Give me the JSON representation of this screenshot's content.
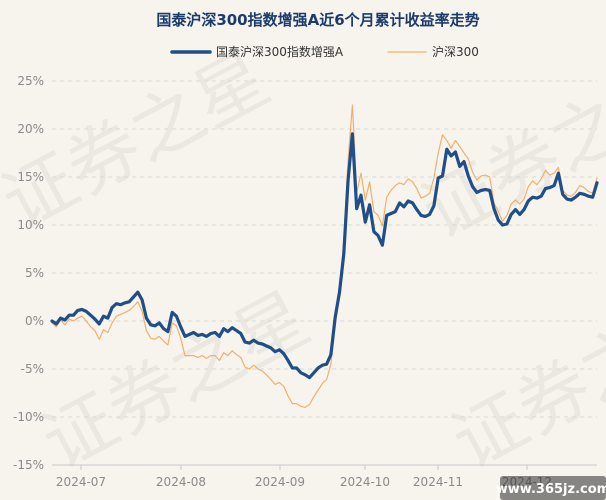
{
  "chart_data": {
    "type": "line",
    "title": "国泰沪深300指数增强A近6个月累计收益率走势",
    "xlabel": "",
    "ylabel": "",
    "ylim": [
      -15,
      25
    ],
    "yticks": [
      25,
      20,
      15,
      10,
      5,
      0,
      -5,
      -10,
      -15
    ],
    "ytick_labels": [
      "25%",
      "20%",
      "15%",
      "10%",
      "5%",
      "0%",
      "-5%",
      "-10%",
      "-15%"
    ],
    "xticks": [
      "2024-07",
      "2024-08",
      "2024-09",
      "2024-10",
      "2024-11",
      "2024-12"
    ],
    "grid": true,
    "legend_position": "top",
    "series": [
      {
        "name": "国泰沪深300指数增强A",
        "color": "#1f4e89",
        "values": [
          0.0,
          -0.3,
          0.3,
          0.1,
          0.6,
          0.6,
          1.1,
          1.2,
          1.0,
          0.6,
          0.2,
          -0.3,
          0.5,
          0.3,
          1.4,
          1.8,
          1.7,
          1.9,
          2.0,
          2.5,
          3.0,
          2.2,
          0.3,
          -0.4,
          -0.5,
          -0.2,
          -0.8,
          -1.1,
          0.9,
          0.5,
          -0.6,
          -1.6,
          -1.4,
          -1.2,
          -1.5,
          -1.4,
          -1.6,
          -1.3,
          -1.2,
          -1.6,
          -0.8,
          -1.1,
          -0.7,
          -1.0,
          -1.3,
          -2.2,
          -2.3,
          -2.0,
          -2.3,
          -2.4,
          -2.6,
          -2.8,
          -3.2,
          -3.0,
          -3.4,
          -4.1,
          -4.9,
          -4.9,
          -5.4,
          -5.6,
          -5.9,
          -5.4,
          -4.9,
          -4.6,
          -4.5,
          -3.5,
          0.4,
          3.0,
          7.0,
          14.7,
          19.5,
          11.7,
          13.1,
          10.3,
          12.1,
          9.3,
          8.9,
          7.9,
          11.0,
          11.2,
          11.4,
          12.3,
          11.9,
          12.5,
          12.3,
          11.6,
          11.0,
          10.9,
          11.1,
          12.0,
          14.9,
          15.1,
          17.9,
          17.2,
          17.6,
          16.1,
          16.6,
          15.1,
          14.0,
          13.4,
          13.6,
          13.7,
          13.6,
          11.7,
          10.5,
          10.0,
          10.1,
          11.1,
          11.6,
          11.1,
          11.6,
          12.5,
          12.9,
          12.8,
          13.0,
          13.8,
          13.9,
          14.1,
          15.4,
          13.2,
          12.7,
          12.6,
          12.9,
          13.3,
          13.2,
          13.0,
          12.9,
          14.4
        ]
      },
      {
        "name": "沪深300",
        "color": "#f2b06a",
        "values": [
          -0.2,
          -0.6,
          0.1,
          -0.4,
          0.2,
          0.0,
          0.3,
          0.5,
          0.0,
          -0.6,
          -1.0,
          -1.9,
          -0.9,
          -1.2,
          -0.2,
          0.5,
          0.7,
          0.9,
          1.1,
          1.5,
          2.0,
          1.0,
          -1.0,
          -1.8,
          -1.9,
          -1.6,
          -2.1,
          -2.5,
          -0.2,
          -0.5,
          -1.8,
          -3.6,
          -3.6,
          -3.6,
          -3.8,
          -3.6,
          -3.9,
          -3.6,
          -3.6,
          -4.1,
          -3.3,
          -3.6,
          -3.1,
          -3.5,
          -3.8,
          -4.8,
          -5.0,
          -4.6,
          -5.0,
          -5.2,
          -5.6,
          -6.1,
          -6.6,
          -6.4,
          -6.8,
          -7.8,
          -8.6,
          -8.6,
          -8.9,
          -9.0,
          -8.7,
          -7.9,
          -7.2,
          -6.5,
          -6.1,
          -4.5,
          -0.4,
          2.6,
          8.5,
          16.7,
          22.5,
          13.4,
          15.4,
          12.6,
          14.5,
          11.4,
          11.0,
          9.9,
          12.9,
          13.6,
          14.1,
          14.4,
          14.2,
          14.8,
          14.5,
          13.8,
          12.8,
          13.0,
          13.3,
          14.9,
          17.5,
          19.4,
          18.8,
          18.0,
          18.8,
          18.2,
          17.5,
          16.9,
          15.5,
          14.7,
          15.1,
          15.2,
          15.0,
          12.3,
          11.4,
          10.4,
          11.0,
          12.2,
          12.6,
          12.2,
          12.7,
          14.0,
          14.6,
          14.2,
          14.8,
          15.7,
          15.2,
          15.4,
          16.0,
          13.6,
          13.1,
          13.0,
          13.4,
          14.1,
          13.9,
          13.5,
          13.3,
          14.9
        ]
      }
    ]
  },
  "watermark": {
    "text": "证券之星",
    "site": "www.365jz.com"
  }
}
